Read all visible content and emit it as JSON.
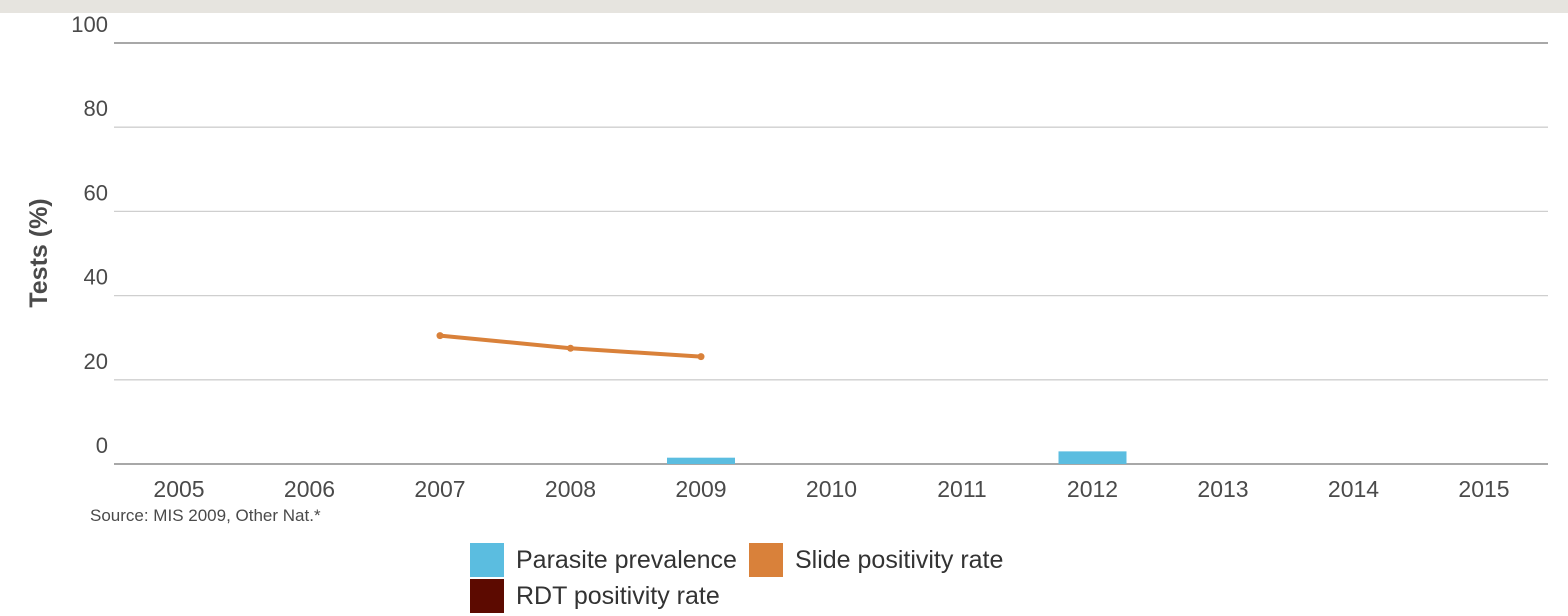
{
  "chart_data": {
    "type": "bar",
    "ylabel": "Tests (%)",
    "ylim": [
      0,
      100
    ],
    "yticks": [
      0,
      20,
      40,
      60,
      80,
      100
    ],
    "categories": [
      "2005",
      "2006",
      "2007",
      "2008",
      "2009",
      "2010",
      "2011",
      "2012",
      "2013",
      "2014",
      "2015"
    ],
    "series": [
      {
        "name": "Parasite prevalence",
        "kind": "bar",
        "color": "#5bbde0",
        "values": [
          null,
          null,
          null,
          null,
          1.5,
          null,
          null,
          3,
          null,
          null,
          null
        ]
      },
      {
        "name": "Slide positivity rate",
        "kind": "line",
        "color": "#d9813a",
        "values": [
          null,
          null,
          30.5,
          27.5,
          25.5,
          null,
          null,
          null,
          null,
          null,
          null
        ]
      },
      {
        "name": "RDT positivity rate",
        "kind": "line",
        "color": "#5c0a00",
        "values": [
          null,
          null,
          null,
          null,
          null,
          null,
          null,
          null,
          null,
          null,
          null
        ]
      }
    ],
    "source": "Source: MIS 2009, Other Nat.*",
    "grid": true,
    "legend_position": "bottom"
  }
}
